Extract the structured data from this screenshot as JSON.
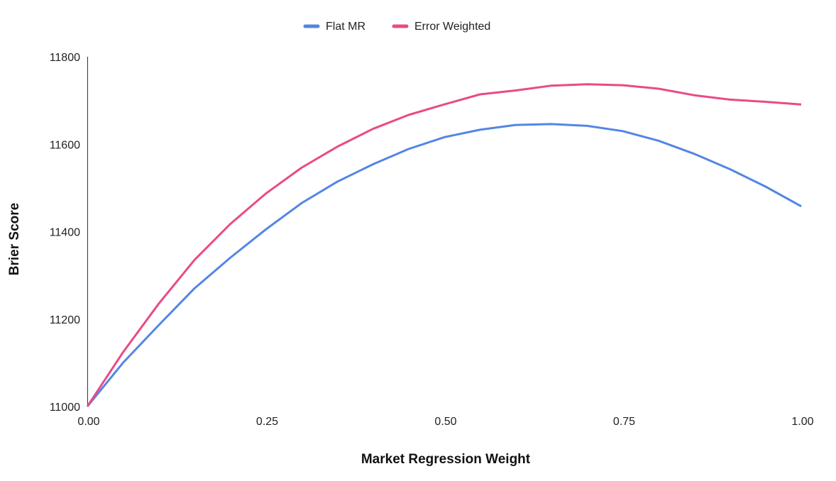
{
  "chart_data": {
    "type": "line",
    "title": "",
    "xlabel": "Market Regression Weight",
    "ylabel": "Brier Score",
    "xlim": [
      0,
      1
    ],
    "ylim": [
      11000,
      11800
    ],
    "xticks": [
      "0.00",
      "0.25",
      "0.50",
      "0.75",
      "1.00"
    ],
    "yticks": [
      "11000",
      "11200",
      "11400",
      "11600",
      "11800"
    ],
    "grid": false,
    "legend_position": "top",
    "x": [
      0,
      0.05,
      0.1,
      0.15,
      0.2,
      0.25,
      0.3,
      0.35,
      0.4,
      0.45,
      0.5,
      0.55,
      0.6,
      0.65,
      0.7,
      0.75,
      0.8,
      0.85,
      0.9,
      0.95,
      1.0
    ],
    "series": [
      {
        "name": "Flat MR",
        "color": "#5386e4",
        "values": [
          11000,
          11100,
          11186,
          11270,
          11340,
          11405,
          11465,
          11514,
          11554,
          11589,
          11616,
          11633,
          11644,
          11646,
          11642,
          11630,
          11608,
          11578,
          11543,
          11503,
          11458
        ]
      },
      {
        "name": "Error Weighted",
        "color": "#e94a87",
        "values": [
          11000,
          11124,
          11235,
          11335,
          11417,
          11487,
          11546,
          11594,
          11635,
          11667,
          11691,
          11714,
          11723,
          11734,
          11737,
          11735,
          11727,
          11712,
          11702,
          11697,
          11691
        ]
      }
    ]
  }
}
